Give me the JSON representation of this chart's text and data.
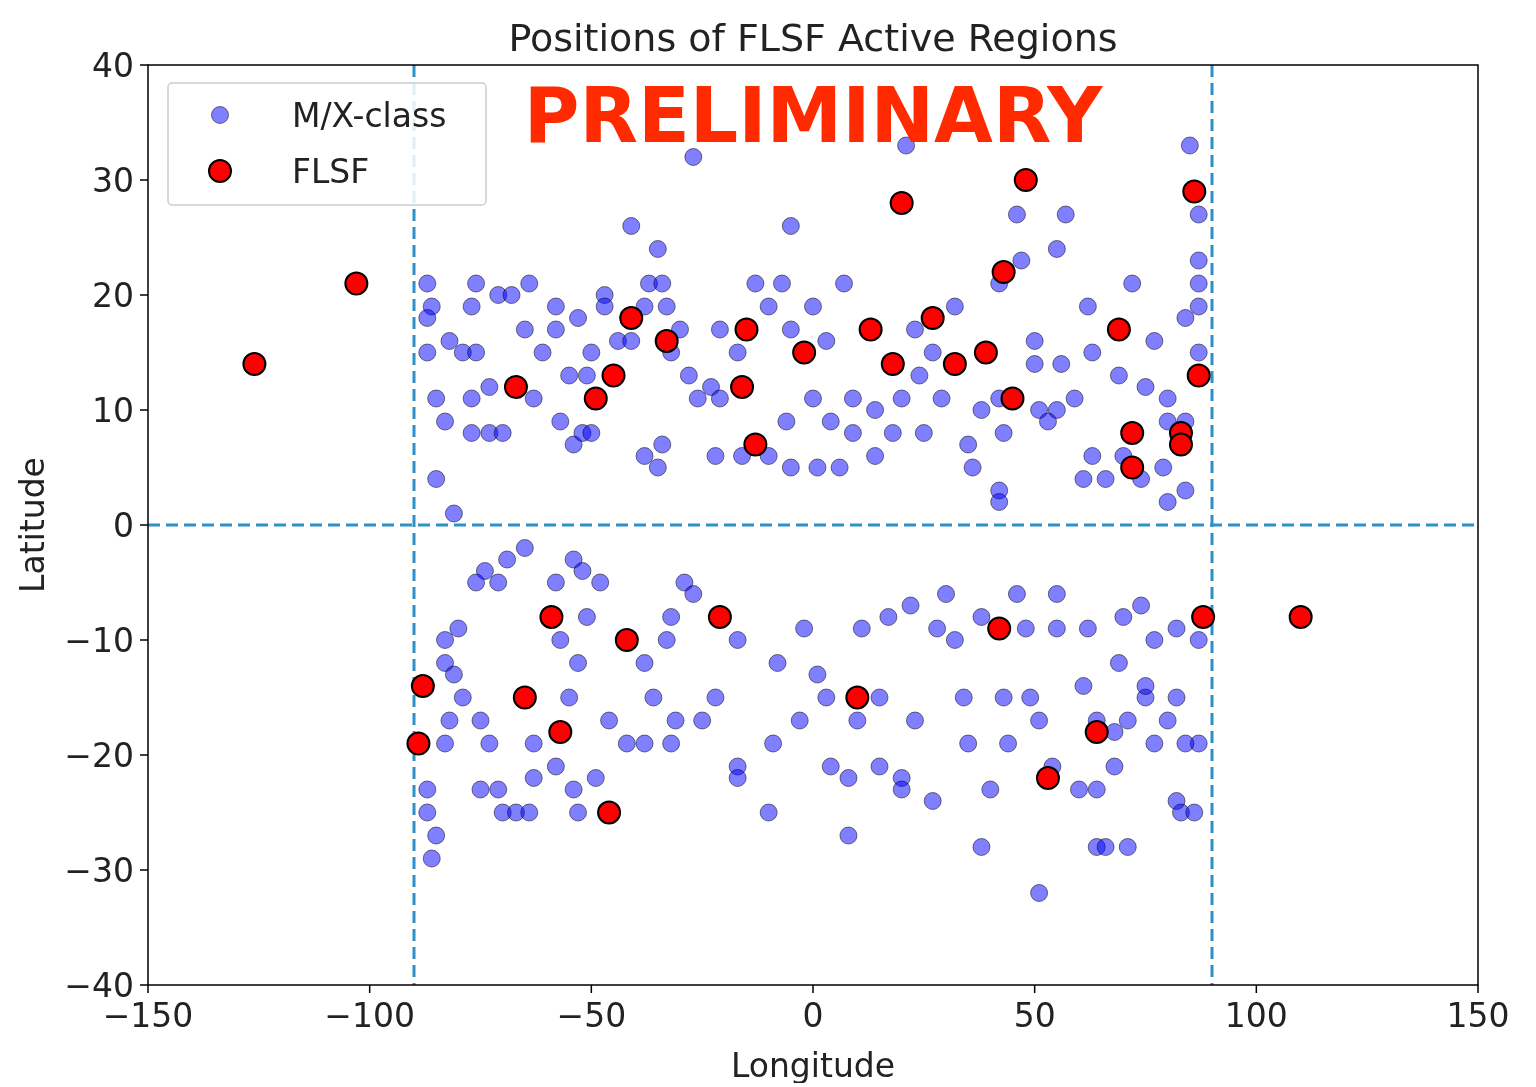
{
  "chart_data": {
    "type": "scatter",
    "title": "Positions of FLSF Active Regions",
    "xlabel": "Longitude",
    "ylabel": "Latitude",
    "xlim": [
      -150,
      150
    ],
    "xticks": [
      -150,
      -100,
      -50,
      0,
      50,
      100,
      150
    ],
    "ylim": [
      -40,
      40
    ],
    "yticks": [
      -40,
      -30,
      -20,
      -10,
      0,
      10,
      20,
      30,
      40
    ],
    "grid": false,
    "legend": "top left",
    "marker": "circle",
    "annotations": [
      "PRELIMINARY"
    ],
    "ref_lines": [
      {
        "axis": "x",
        "value": -90,
        "color": "#2e92c8",
        "line_style": "dashed"
      },
      {
        "axis": "x",
        "value": 90,
        "color": "#2e92c8",
        "line_style": "dashed"
      },
      {
        "axis": "y",
        "value": 0,
        "color": "#2e92c8",
        "line_style": "dashed"
      }
    ],
    "series": [
      {
        "name": "M/X-class",
        "color": "#0000ff",
        "x": [
          -27,
          21,
          85,
          46,
          57,
          47,
          55,
          87,
          87,
          -41,
          -35,
          -5,
          7,
          62,
          72,
          42,
          -87,
          -86,
          -87,
          -87,
          -85,
          -85,
          -81,
          -83,
          -82,
          -79,
          -76,
          -77,
          -76,
          -77,
          -73,
          -77,
          -73,
          -70,
          -71,
          -68,
          -64,
          -65,
          -61,
          -58,
          -58,
          -63,
          -57,
          -54,
          -52,
          -50,
          -47,
          -47,
          -53,
          -55,
          -51,
          -50,
          -44,
          -41,
          -38,
          -37,
          -34,
          -33,
          -32,
          -30,
          -28,
          -34,
          -38,
          -35,
          -26,
          -23,
          -21,
          -22,
          -16,
          -17,
          -21,
          -13,
          -10,
          -10,
          -7,
          -5,
          -6,
          -5,
          0,
          1,
          0,
          3,
          4,
          6,
          9,
          14,
          14,
          9,
          18,
          20,
          23,
          24,
          25,
          27,
          29,
          32,
          35,
          36,
          38,
          42,
          42,
          42,
          43,
          50,
          50,
          51,
          55,
          53,
          56,
          59,
          61,
          63,
          63,
          66,
          69,
          70,
          75,
          77,
          79,
          74,
          80,
          84,
          80,
          80,
          84,
          84,
          87,
          87,
          87,
          -65,
          -69,
          -74,
          -76,
          -71,
          -54,
          -52,
          -48,
          -58,
          -80,
          -83,
          -83,
          -81,
          -79,
          -82,
          -87,
          -87,
          -85,
          -86,
          -83,
          -75,
          -73,
          -75,
          -71,
          -70,
          -67,
          -64,
          -63,
          -63,
          -58,
          -54,
          -53,
          -49,
          -55,
          -53,
          -57,
          -51,
          -46,
          -42,
          -38,
          -36,
          -38,
          -33,
          -32,
          -29,
          -27,
          -31,
          -32,
          -25,
          -22,
          -17,
          -17,
          -17,
          -10,
          -8,
          -9,
          -3,
          -2,
          3,
          4,
          1,
          8,
          8,
          10,
          11,
          15,
          17,
          15,
          20,
          20,
          22,
          23,
          27,
          30,
          28,
          32,
          34,
          35,
          38,
          38,
          40,
          43,
          44,
          46,
          48,
          49,
          51,
          51,
          54,
          55,
          55,
          60,
          62,
          61,
          64,
          64,
          64,
          66,
          71,
          68,
          69,
          70,
          74,
          77,
          75,
          77,
          80,
          82,
          82,
          83,
          86,
          87,
          87,
          71,
          75,
          68,
          84,
          82
        ],
        "values": [
          32,
          33,
          33,
          27,
          27,
          23,
          24,
          27,
          23,
          26,
          24,
          26,
          21,
          19,
          21,
          21,
          21,
          19,
          18,
          15,
          11,
          4,
          1,
          9,
          16,
          15,
          15,
          19,
          21,
          11,
          12,
          8,
          8,
          8,
          20,
          20,
          21,
          17,
          15,
          19,
          17,
          11,
          9,
          7,
          8,
          8,
          20,
          19,
          18,
          13,
          13,
          15,
          16,
          16,
          19,
          21,
          21,
          19,
          15,
          17,
          13,
          7,
          6,
          5,
          11,
          12,
          11,
          6,
          6,
          15,
          17,
          21,
          19,
          6,
          21,
          17,
          9,
          5,
          11,
          5,
          19,
          16,
          9,
          5,
          11,
          10,
          6,
          8,
          8,
          11,
          17,
          13,
          8,
          15,
          11,
          19,
          7,
          5,
          10,
          11,
          3,
          2,
          8,
          16,
          14,
          10,
          10,
          9,
          14,
          11,
          4,
          6,
          15,
          4,
          13,
          6,
          12,
          16,
          5,
          4,
          2,
          3,
          11,
          9,
          9,
          18,
          21,
          15,
          19,
          -2,
          -3,
          -4,
          -5,
          -5,
          -3,
          -4,
          -5,
          -5,
          -9,
          -10,
          -12,
          -13,
          -15,
          -17,
          -23,
          -25,
          -27,
          -29,
          -19,
          -17,
          -19,
          -23,
          -23,
          -25,
          -25,
          -25,
          -19,
          -22,
          -21,
          -23,
          -25,
          -22,
          -15,
          -12,
          -10,
          -8,
          -17,
          -19,
          -19,
          -15,
          -12,
          -10,
          -8,
          -5,
          -6,
          -17,
          -19,
          -17,
          -15,
          -10,
          -21,
          -22,
          -25,
          -12,
          -19,
          -17,
          -9,
          -15,
          -21,
          -13,
          -27,
          -22,
          -17,
          -9,
          -21,
          -8,
          -15,
          -22,
          -23,
          -7,
          -17,
          -24,
          -6,
          -9,
          -10,
          -15,
          -19,
          -8,
          -28,
          -23,
          -15,
          -19,
          -6,
          -9,
          -15,
          -32,
          -17,
          -21,
          -9,
          -6,
          -23,
          -9,
          -14,
          -17,
          -23,
          -28,
          -28,
          -28,
          -21,
          -12,
          -8,
          -7,
          -10,
          -15,
          -19,
          -17,
          -9,
          -24,
          -25,
          -25,
          -19,
          -10,
          -17,
          -14,
          -18,
          -19,
          -15
        ]
      },
      {
        "name": "FLSF",
        "color": "#ff0000",
        "x": [
          -126,
          -103,
          -88,
          -89,
          -67,
          -59,
          -65,
          -57,
          -49,
          -45,
          -41,
          -46,
          -42,
          -33,
          -21,
          -16,
          -15,
          -13,
          -2,
          10,
          13,
          18,
          20,
          27,
          32,
          39,
          42,
          43,
          45,
          48,
          53,
          64,
          69,
          72,
          72,
          83,
          83,
          86,
          87,
          88,
          110
        ],
        "values": [
          14,
          21,
          -14,
          -19,
          12,
          -8,
          -15,
          -18,
          11,
          13,
          18,
          -25,
          -10,
          16,
          -8,
          12,
          17,
          7,
          15,
          -15,
          17,
          14,
          28,
          18,
          14,
          15,
          -9,
          22,
          11,
          30,
          -22,
          -18,
          17,
          8,
          5,
          8,
          7,
          29,
          13,
          -8,
          -8
        ]
      }
    ]
  }
}
